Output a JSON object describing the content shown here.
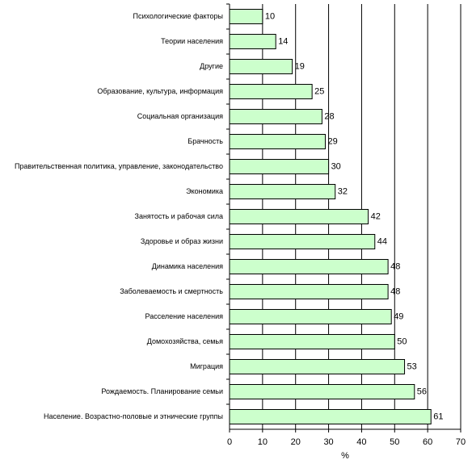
{
  "chart_data": {
    "type": "bar",
    "orientation": "horizontal",
    "categories": [
      "Психологические факторы",
      "Теории населения",
      "Другие",
      "Образование, культура, информация",
      "Социальная организация",
      "Брачность",
      "Правительственная политика, управление, законодательство",
      "Экономика",
      "Занятость и рабочая сила",
      "Здоровье и образ жизни",
      "Динамика населения",
      "Заболеваемость и смертность",
      "Расселение населения",
      "Домохозяйства, семья",
      "Миграция",
      "Рождаемость. Планирование семьи",
      "Население. Возрастно-половые и этнические группы"
    ],
    "values": [
      10,
      14,
      19,
      25,
      28,
      29,
      30,
      32,
      42,
      44,
      48,
      48,
      49,
      50,
      53,
      56,
      61
    ],
    "color": "#ccffcc",
    "x_label": "%",
    "xlim": [
      0,
      70
    ],
    "xticks": [
      0,
      10,
      20,
      30,
      40,
      50,
      60,
      70
    ],
    "grid": true
  }
}
